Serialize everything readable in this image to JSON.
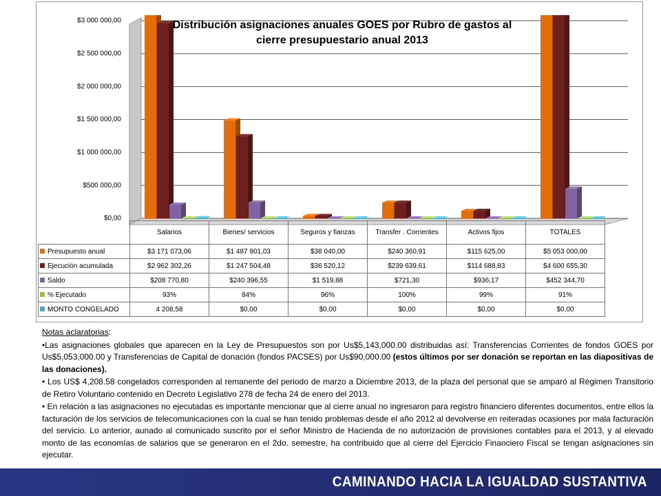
{
  "chart_data": {
    "type": "bar",
    "title": "Distribución asignaciones anuales GOES por Rubro de gastos al cierre presupuestario anual 2013",
    "categories": [
      "Salarios",
      "Bienes/ servicios",
      "Seguros y fianzas",
      "Transfer . Corrientes",
      "Activos fijos",
      "TOTALES"
    ],
    "series": [
      {
        "name": "Presupuesto anual",
        "color": "#e46c0a",
        "values": [
          3171073.06,
          1487901.03,
          38040.0,
          240360.91,
          115625.0,
          5053000.0
        ],
        "value_labels": [
          "$3 171 073,06",
          "$1 487 901,03",
          "$38 040,00",
          "$240 360,91",
          "$115 625,00",
          "$5 053 000,00"
        ]
      },
      {
        "name": "Ejecución acumulada",
        "color": "#6e1f1f",
        "values": [
          2962302.26,
          1247504.48,
          36520.12,
          239639.61,
          114688.83,
          4600655.3
        ],
        "value_labels": [
          "$2 962 302,26",
          "$1 247 504,48",
          "$36 520,12",
          "$239 639,61",
          "$114 688,83",
          "$4 600 655,30"
        ]
      },
      {
        "name": "Saldo",
        "color": "#8064a2",
        "values": [
          208770.8,
          240396.55,
          1519.88,
          721.3,
          936.17,
          452344.7
        ],
        "value_labels": [
          "$208 770,80",
          "$240 396,55",
          "$1 519,88",
          "$721,30",
          "$936,17",
          "$452 344,70"
        ]
      },
      {
        "name": "% Ejecutado",
        "color": "#9bbb59",
        "values": [
          93,
          84,
          96,
          100,
          99,
          91
        ],
        "value_labels": [
          "93%",
          "84%",
          "96%",
          "100%",
          "99%",
          "91%"
        ]
      },
      {
        "name": "MONTO CONGELADO",
        "color": "#4bacc6",
        "values": [
          4208.58,
          0,
          0,
          0,
          0,
          0
        ],
        "value_labels": [
          "4 208,58",
          "$0,00",
          "$0,00",
          "$0,00",
          "$0,00",
          "$0,00"
        ]
      }
    ],
    "ylim": [
      0,
      3000000
    ],
    "yticks": [
      {
        "value": 0,
        "label": "$0,00"
      },
      {
        "value": 500000,
        "label": "$500 000,00"
      },
      {
        "value": 1000000,
        "label": "$1 000 000,00"
      },
      {
        "value": 1500000,
        "label": "$1 500 000,00"
      },
      {
        "value": 2000000,
        "label": "$2 000 000,00"
      },
      {
        "value": 2500000,
        "label": "$2 500 000,00"
      },
      {
        "value": 3000000,
        "label": "$3 000 000,00"
      }
    ],
    "grid": true
  },
  "notes": {
    "heading": "Notas aclaratorias",
    "items": [
      {
        "text": "•Las asignaciones globales que aparecen en la Ley de Presupuestos son por Us$5,143,000.00 distribuidas así: Transferencias Corrientes de fondos GOES por Us$5,053,000.00 y Transferencias de Capital de donación (fondos PACSES) por Us$90,000.00 ",
        "bold": "(estos últimos por ser donación se reportan en las diapositivas de las donaciones)."
      },
      {
        "text": "• Los US$ 4,208.58 congelados corresponden al remanente del periodo de marzo a Diciembre 2013, de la plaza del personal que se amparó al Régimen Transitorio de Retiro Voluntario contenido en Decreto Legislativo 278 de fecha 24 de enero del 2013."
      },
      {
        "text": "• En relación a las asignaciones no ejecutadas es importante mencionar que al cierre anual no ingresaron para registro financiero diferentes documentos, entre ellos la facturación de los servicios de telecomunicaciones con la cual se han tenido problemas desde el año 2012 al devolverse en reiteradas ocasiones por mala facturación del servicio. Lo anterior, aunado al comunicado suscrito por el señor Ministro de Hacienda de no autorización de provisiones contables para el 2013, y al elevado monto de las economías de salarios que se generaron en el 2do. semestre, ha contribuido que al cierre del Ejercicio Financiero Fiscal se tengan asignaciones sin ejecutar."
      }
    ]
  },
  "footer": "CAMINANDO HACIA LA IGUALDAD SUSTANTIVA"
}
